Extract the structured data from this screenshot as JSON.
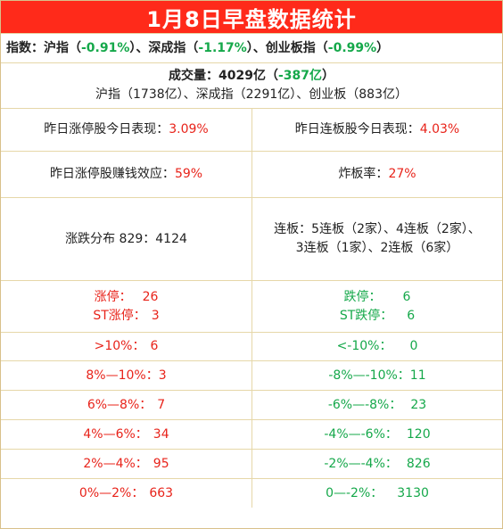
{
  "title": "1月8日早盘数据统计",
  "indices": {
    "label": "指数：",
    "sh_name": "沪指",
    "sh_val": "-0.91%",
    "sz_name": "深成指",
    "sz_val": "-1.17%",
    "cy_name": "创业板指",
    "cy_val": "-0.99%"
  },
  "volume": {
    "label": "成交量：4029亿",
    "change": "-387亿",
    "detail": "沪指（1738亿）、深成指（2291亿）、创业板（883亿）"
  },
  "stats": {
    "limitup_perf_label": "昨日涨停股今日表现：",
    "limitup_perf_val": "3.09%",
    "consec_perf_label": "昨日连板股今日表现：",
    "consec_perf_val": "4.03%",
    "profit_label": "昨日涨停股赚钱效应：",
    "profit_val": "59%",
    "break_label": "炸板率：",
    "break_val": "27%",
    "dist_label": "涨跌分布 829：4124",
    "consec_line1": "连板：5连板（2家）、4连板（2家）、",
    "consec_line2": "3连板（1家）、2连板（6家）"
  },
  "up": [
    {
      "label": "涨停：",
      "value": "26"
    },
    {
      "label": "ST涨停：",
      "value": "3"
    },
    {
      "label": ">10%：",
      "value": "6"
    },
    {
      "label": "8%—10%：",
      "value": "3"
    },
    {
      "label": "6%—8%：",
      "value": "7"
    },
    {
      "label": "4%—6%：",
      "value": "34"
    },
    {
      "label": "2%—4%：",
      "value": "95"
    },
    {
      "label": "0%—2%：",
      "value": "663"
    }
  ],
  "down": [
    {
      "label": "跌停：",
      "value": "6"
    },
    {
      "label": "ST跌停：",
      "value": "6"
    },
    {
      "label": "<-10%：",
      "value": "0"
    },
    {
      "label": "-8%—-10%：",
      "value": "11"
    },
    {
      "label": "-6%—-8%：",
      "value": "23"
    },
    {
      "label": "-4%—-6%：",
      "value": "120"
    },
    {
      "label": "-2%—-4%：",
      "value": "826"
    },
    {
      "label": "0—-2%：",
      "value": "3130"
    }
  ]
}
